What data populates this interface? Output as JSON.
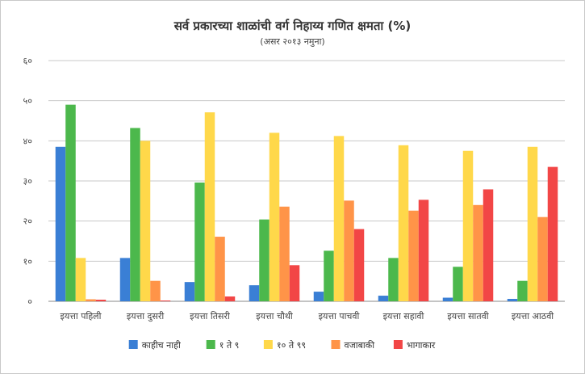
{
  "chart_data": {
    "type": "bar",
    "title": "सर्व प्रकारच्या शाळांची वर्ग निहाय्य गणित क्षमता (%)",
    "subtitle": "(असर २०१३ नमुना)",
    "xlabel": "",
    "ylabel": "",
    "ylim": [
      0,
      60
    ],
    "yticks": [
      0,
      10,
      20,
      30,
      40,
      50,
      60
    ],
    "ytick_labels": [
      "०",
      "१०",
      "२०",
      "३०",
      "४०",
      "५०",
      "६०"
    ],
    "grid": true,
    "legend_position": "bottom",
    "categories": [
      "इयत्ता पहिली",
      "इयत्ता दुसरी",
      "इयत्ता तिसरी",
      "इयत्ता चौथी",
      "इयत्ता पाचवी",
      "इयत्ता सहावी",
      "इयत्ता सातवी",
      "इयत्ता आठवी"
    ],
    "series": [
      {
        "name": "काहीच नाही",
        "color": "#3a7fd5",
        "values": [
          38.5,
          10.8,
          4.8,
          4.0,
          2.4,
          1.4,
          0.9,
          0.6
        ]
      },
      {
        "name": "१ ते ९",
        "color": "#4cb84c",
        "values": [
          49.0,
          43.2,
          29.6,
          20.4,
          12.6,
          10.8,
          8.6,
          5.1
        ]
      },
      {
        "name": "१० ते ९९",
        "color": "#ffd84a",
        "values": [
          10.8,
          40.0,
          47.1,
          42.0,
          41.2,
          38.9,
          37.5,
          38.5
        ]
      },
      {
        "name": "वजाबाकी",
        "color": "#ff9448",
        "values": [
          0.5,
          5.1,
          16.1,
          23.6,
          25.1,
          22.6,
          24.0,
          21.0
        ]
      },
      {
        "name": "भागाकार",
        "color": "#f24646",
        "values": [
          0.4,
          0.2,
          1.2,
          9.0,
          18.0,
          25.3,
          27.9,
          33.5
        ]
      }
    ]
  }
}
